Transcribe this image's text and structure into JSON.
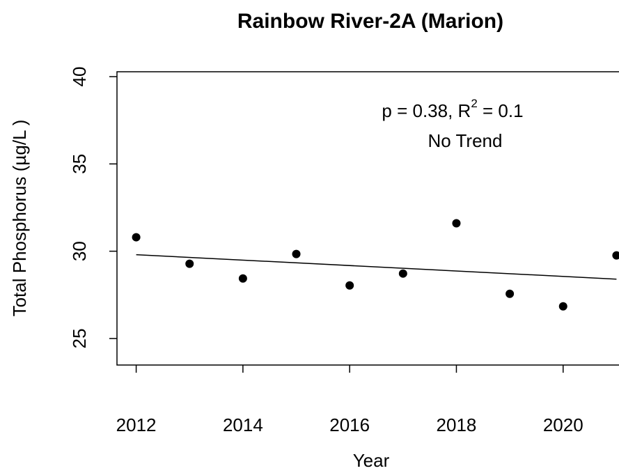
{
  "chart_data": {
    "type": "scatter",
    "title": "Rainbow River-2A (Marion)",
    "x_label": "Year",
    "y_label": "Total Phosphorus (µg/L )",
    "x": [
      2012,
      2013,
      2014,
      2015,
      2016,
      2017,
      2018,
      2019,
      2020,
      2021
    ],
    "values": [
      30.8,
      29.28,
      28.44,
      29.84,
      28.04,
      28.72,
      31.6,
      27.56,
      26.84,
      29.76
    ],
    "color": "#000000",
    "trend_line": {
      "x": [
        2012,
        2021
      ],
      "values": [
        29.8,
        28.4
      ]
    },
    "stat_text": [
      "p = 0.38, R",
      "2",
      " = 0.1"
    ],
    "trend_text": "No Trend",
    "xlim": [
      2011.64,
      2021.36
    ],
    "ylim": [
      23.48,
      40.28
    ],
    "xticks": [
      2012,
      2014,
      2016,
      2018,
      2020
    ],
    "yticks": [
      25,
      30,
      35,
      40
    ]
  }
}
